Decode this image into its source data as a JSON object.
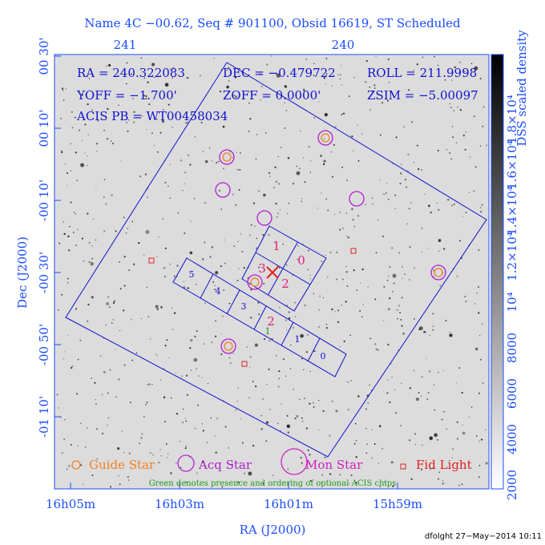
{
  "title": "Name 4C −00.62, Seq # 901100, Obsid 16619, ST Scheduled",
  "top_axis": [
    "241",
    "240"
  ],
  "left_axis": {
    "title": "Dec (J2000)",
    "labels": [
      "00 30'",
      "00 10'",
      "-00 10'",
      "-00 30'",
      "-00 50'",
      "-01 10'"
    ]
  },
  "bottom_axis": {
    "title": "RA (J2000)",
    "labels": [
      "16h05m",
      "16h03m",
      "16h01m",
      "15h59m"
    ]
  },
  "info": [
    "RA = 240.322083",
    "DEC = −0.479722",
    "ROLL = 211.9998",
    "YOFF = −1.700'",
    "ZOFF = 0.0000'",
    "ZSIM = −5.00097",
    "ACIS PB = WT00458034"
  ],
  "i_chips": [
    "1",
    "0",
    "3",
    "2"
  ],
  "s_chips": [
    "5",
    "4",
    "3",
    "2",
    "1",
    "0"
  ],
  "optional_chip": "1",
  "legend": [
    "Guide Star",
    "Acq Star",
    "Mon Star",
    "Fid Light"
  ],
  "note": "Green denotes presence and ordering of optional ACIS chips",
  "colorbar": {
    "title": "DSS scaled density",
    "labels": [
      "2000",
      "4000",
      "6000",
      "8000",
      "10⁴",
      "1.2×10⁴",
      "1.4×10⁴",
      "1.6×10⁴",
      "1.8×10⁴"
    ]
  },
  "footer": "dfolght 27−May−2014 10:11"
}
